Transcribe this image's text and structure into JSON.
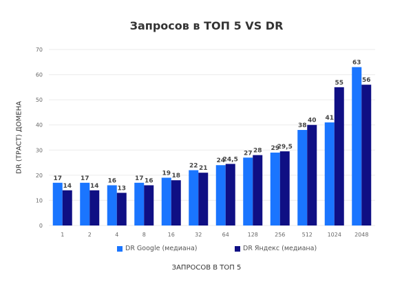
{
  "chart_data": {
    "type": "bar",
    "title": "Запросов в ТОП 5 VS DR",
    "xlabel": "ЗАПРОСОВ В ТОП 5",
    "ylabel": "DR (ТРАСТ) ДОМЕНА",
    "ylim": [
      0,
      70
    ],
    "yticks": [
      0,
      10,
      20,
      30,
      40,
      50,
      60,
      70
    ],
    "grid": true,
    "legend": "bottom",
    "categories": [
      "1",
      "2",
      "4",
      "8",
      "16",
      "32",
      "64",
      "128",
      "256",
      "512",
      "1024",
      "2048"
    ],
    "series": [
      {
        "name": "DR Google (медиана)",
        "color": "#1a75ff",
        "values": [
          17,
          17,
          16,
          17,
          19,
          22,
          24,
          27,
          29,
          38,
          41,
          63
        ],
        "labels": [
          "17",
          "17",
          "16",
          "17",
          "19",
          "22",
          "24",
          "27",
          "29",
          "38",
          "41",
          "63"
        ]
      },
      {
        "name": "DR Яндекс (медиана)",
        "color": "#0f0f84",
        "values": [
          14,
          14,
          13,
          16,
          18,
          21,
          24.5,
          28,
          29.5,
          40,
          55,
          56
        ],
        "labels": [
          "14",
          "14",
          "13",
          "16",
          "18",
          "21",
          "24,5",
          "28",
          "29,5",
          "40",
          "55",
          "56"
        ]
      }
    ]
  }
}
